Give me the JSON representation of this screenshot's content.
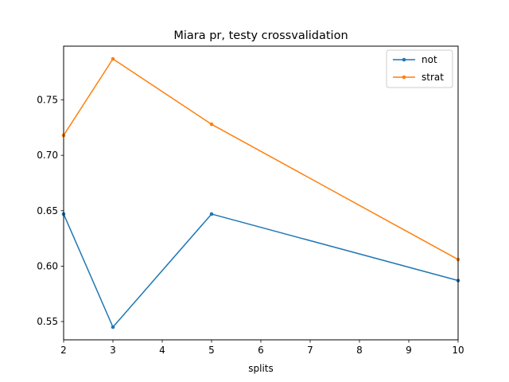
{
  "chart_data": {
    "type": "line",
    "title": "Miara pr, testy crossvalidation",
    "xlabel": "splits",
    "ylabel": "",
    "xlim": [
      2,
      10
    ],
    "ylim": [
      0.5335,
      0.7985
    ],
    "x_ticks": [
      2,
      3,
      4,
      5,
      6,
      7,
      8,
      9,
      10
    ],
    "x_tick_labels": [
      "2",
      "3",
      "4",
      "5",
      "6",
      "7",
      "8",
      "9",
      "10"
    ],
    "y_ticks": [
      0.55,
      0.6,
      0.65,
      0.7,
      0.75
    ],
    "y_tick_labels": [
      "0.55",
      "0.60",
      "0.65",
      "0.70",
      "0.75"
    ],
    "grid": false,
    "legend_position": "top-right",
    "x": [
      2,
      3,
      5,
      10
    ],
    "series": [
      {
        "name": "not",
        "values": [
          0.647,
          0.545,
          0.647,
          0.587
        ],
        "color": "#1f77b4",
        "marker": "point"
      },
      {
        "name": "strat",
        "values": [
          0.718,
          0.787,
          0.728,
          0.606
        ],
        "color": "#ff7f0e",
        "marker": "point"
      }
    ]
  }
}
